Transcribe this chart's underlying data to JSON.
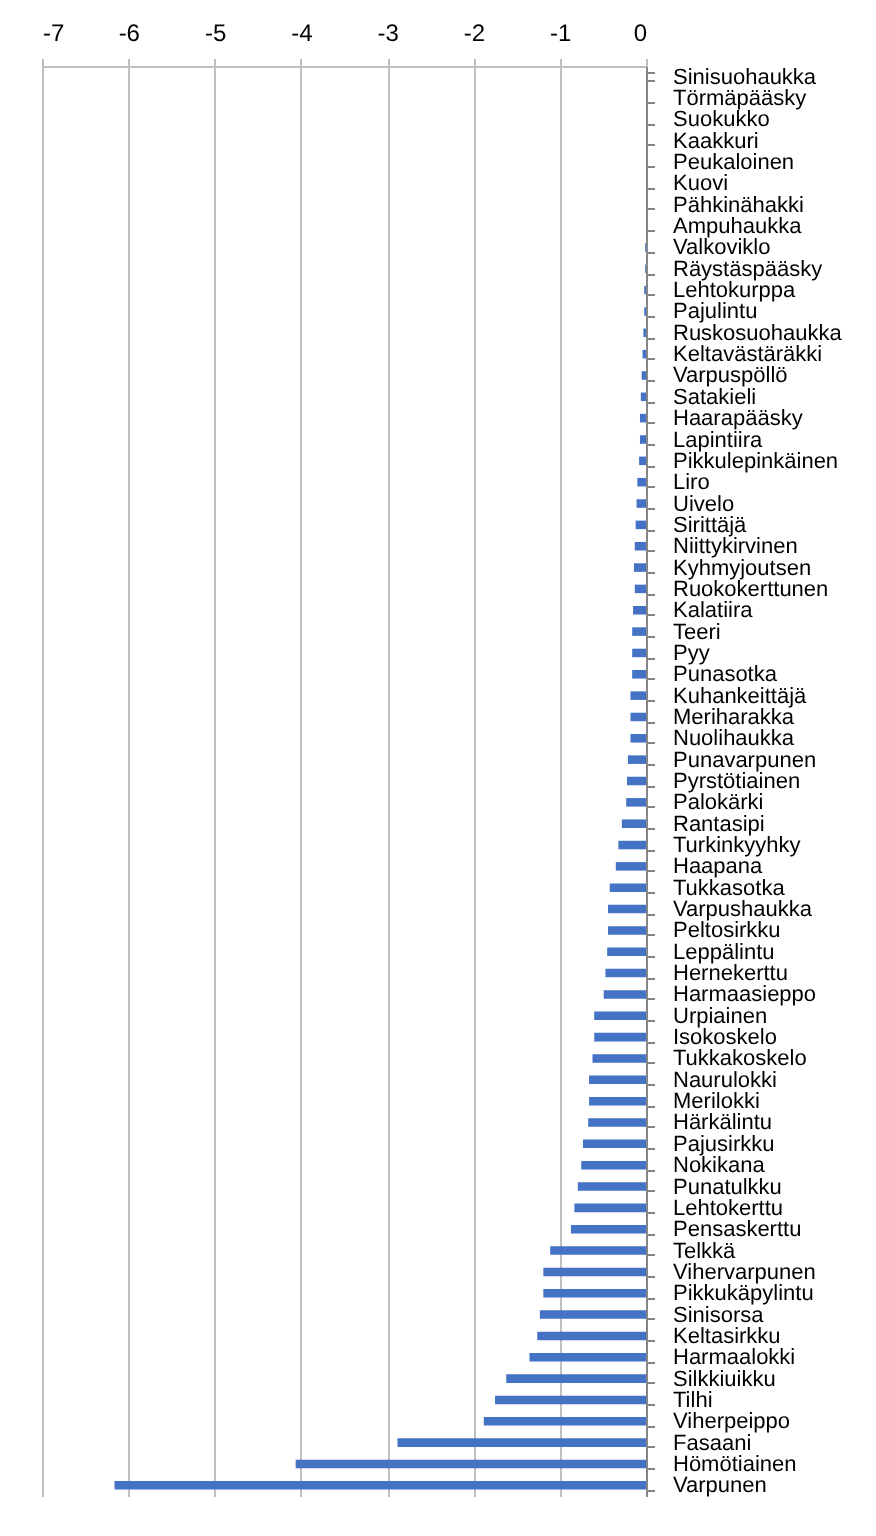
{
  "chart_data": {
    "type": "bar",
    "orientation": "horizontal",
    "categories": [
      "Sinisuohaukka",
      "Törmäpääsky",
      "Suokukko",
      "Kaakkuri",
      "Peukaloinen",
      "Kuovi",
      "Pähkinähakki",
      "Ampuhaukka",
      "Valkoviklo",
      "Räystäspääsky",
      "Lehtokurppa",
      "Pajulintu",
      "Ruskosuohaukka",
      "Keltavästäräkki",
      "Varpuspöllö",
      "Satakieli",
      "Haarapääsky",
      "Lapintiira",
      "Pikkulepinkäinen",
      "Liro",
      "Uivelo",
      "Sirittäjä",
      "Niittykirvinen",
      "Kyhmyjoutsen",
      "Ruokokerttunen",
      "Kalatiira",
      "Teeri",
      "Pyy",
      "Punasotka",
      "Kuhankeittäjä",
      "Meriharakka",
      "Nuolihaukka",
      "Punavarpunen",
      "Pyrstötiainen",
      "Palokärki",
      "Rantasipi",
      "Turkinkyyhky",
      "Haapana",
      "Tukkasotka",
      "Varpushaukka",
      "Peltosirkku",
      "Leppälintu",
      "Hernekerttu",
      "Harmaasieppo",
      "Urpiainen",
      "Isokoskelo",
      "Tukkakoskelo",
      "Naurulokki",
      "Merilokki",
      "Härkälintu",
      "Pajusirkku",
      "Nokikana",
      "Punatulkku",
      "Lehtokerttu",
      "Pensaskerttu",
      "Telkkä",
      "Vihervarpunen",
      "Pikkukäpylintu",
      "Sinisorsa",
      "Keltasirkku",
      "Harmaalokki",
      "Silkkiuikku",
      "Tilhi",
      "Viherpeippo",
      "Fasaani",
      "Hömötiainen",
      "Varpunen"
    ],
    "values": [
      0,
      0,
      0,
      0,
      0,
      0,
      0,
      0,
      -0.01,
      -0.01,
      -0.02,
      -0.02,
      -0.03,
      -0.04,
      -0.05,
      -0.06,
      -0.07,
      -0.07,
      -0.08,
      -0.1,
      -0.11,
      -0.12,
      -0.13,
      -0.14,
      -0.13,
      -0.15,
      -0.16,
      -0.16,
      -0.16,
      -0.18,
      -0.18,
      -0.18,
      -0.21,
      -0.22,
      -0.23,
      -0.28,
      -0.32,
      -0.35,
      -0.42,
      -0.44,
      -0.44,
      -0.45,
      -0.47,
      -0.49,
      -0.6,
      -0.6,
      -0.62,
      -0.66,
      -0.66,
      -0.67,
      -0.73,
      -0.75,
      -0.79,
      -0.83,
      -0.87,
      -1.11,
      -1.19,
      -1.19,
      -1.23,
      -1.26,
      -1.35,
      -1.62,
      -1.75,
      -1.88,
      -2.88,
      -4.06,
      -6.16
    ],
    "color": "#4472c4",
    "xlim": [
      -7,
      0
    ],
    "xticks": [
      -7,
      -6,
      -5,
      -4,
      -3,
      -2,
      -1,
      0
    ],
    "grid": "x"
  }
}
